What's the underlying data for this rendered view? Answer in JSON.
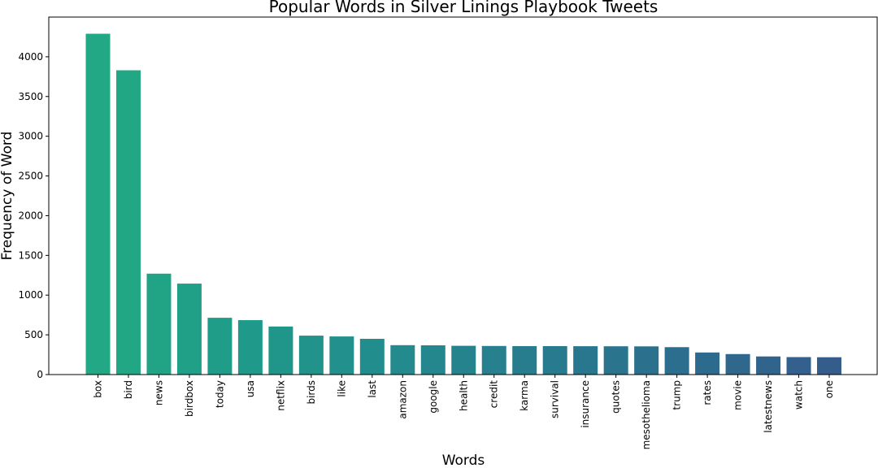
{
  "chart_data": {
    "type": "bar",
    "title": "Popular Words in Silver Linings Playbook Tweets",
    "xlabel": "Words",
    "ylabel": "Frequency of Word",
    "ylim": [
      0,
      4500
    ],
    "yticks": [
      0,
      500,
      1000,
      1500,
      2000,
      2500,
      3000,
      3500,
      4000
    ],
    "grid": false,
    "categories": [
      "box",
      "bird",
      "news",
      "birdbox",
      "today",
      "usa",
      "netflix",
      "birds",
      "like",
      "last",
      "amazon",
      "google",
      "health",
      "credit",
      "karma",
      "survival",
      "insurance",
      "quotes",
      "mesothelioma",
      "trump",
      "rates",
      "movie",
      "latestnews",
      "watch",
      "one"
    ],
    "values": [
      4290,
      3830,
      1270,
      1145,
      715,
      685,
      605,
      490,
      480,
      450,
      370,
      368,
      362,
      360,
      358,
      358,
      357,
      356,
      355,
      345,
      278,
      258,
      228,
      220,
      218
    ],
    "colors": [
      "#22a884",
      "#22a785",
      "#21a386",
      "#20a087",
      "#1f9d88",
      "#1f9a8a",
      "#20968a",
      "#21938b",
      "#22908c",
      "#228d8d",
      "#238a8d",
      "#24878e",
      "#25838e",
      "#26808e",
      "#277d8e",
      "#287a8e",
      "#29778e",
      "#2a748e",
      "#2b718e",
      "#2c6e8e",
      "#2d6b8e",
      "#2f678d",
      "#31648d",
      "#33608d",
      "#355d8c"
    ]
  }
}
